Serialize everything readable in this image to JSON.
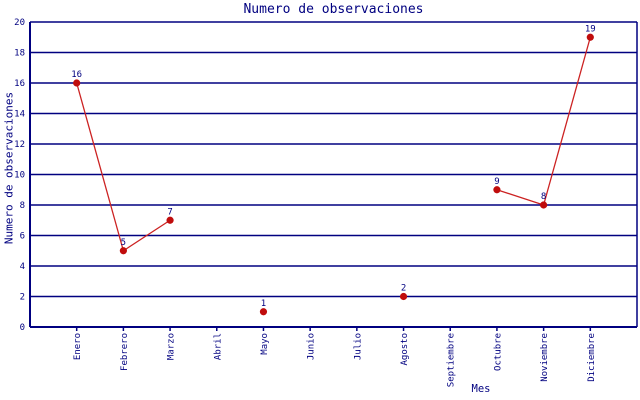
{
  "chart_data": {
    "type": "line",
    "title": "Numero de observaciones",
    "xlabel": "Mes",
    "ylabel": "Numero de observaciones",
    "categories": [
      "Enero",
      "Febrero",
      "Marzo",
      "Abril",
      "Mayo",
      "Junio",
      "Julio",
      "Agosto",
      "Septiembre",
      "Octubre",
      "Noviembre",
      "Diciembre"
    ],
    "values": [
      16,
      5,
      7,
      null,
      1,
      null,
      null,
      2,
      null,
      9,
      8,
      19
    ],
    "point_labels": [
      "16",
      "5",
      "7",
      null,
      "1",
      null,
      null,
      "2",
      null,
      "9",
      "8",
      "19"
    ],
    "ylim": [
      0,
      20
    ],
    "yticks": [
      0,
      2,
      4,
      6,
      8,
      10,
      12,
      14,
      16,
      18,
      20
    ],
    "grid": true,
    "legend": false,
    "line_gaps_at_missing_months": true,
    "colors": {
      "axis": "#000080",
      "grid": "#000080",
      "text": "#000080",
      "line": "#cc2222",
      "point": "#c00c0c"
    }
  }
}
